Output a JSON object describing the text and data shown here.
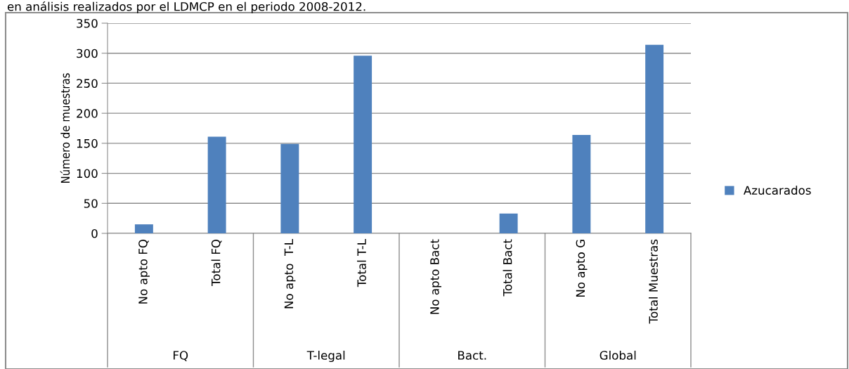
{
  "chart_data": {
    "type": "bar",
    "categories": [
      "No apto FQ",
      "Total FQ",
      "No apto  T-L",
      "Total T-L",
      "No apto Bact",
      "Total Bact",
      "No apto G",
      "Total Muestras"
    ],
    "series": [
      {
        "name": "Azucarados",
        "color": "#4f81bd",
        "values": [
          15,
          161,
          149,
          296,
          0,
          33,
          164,
          314
        ]
      }
    ],
    "ylabel": "Número de muestras",
    "ylim": [
      0,
      350
    ],
    "yticks": [
      0,
      50,
      100,
      150,
      200,
      250,
      300,
      350
    ],
    "grid": "y",
    "legend": "right",
    "annotations": [
      "en análisis realizados por el LDMCP en el periodo 2008-2012.",
      "FQ",
      "T-legal",
      "Bact.",
      "Global"
    ]
  }
}
